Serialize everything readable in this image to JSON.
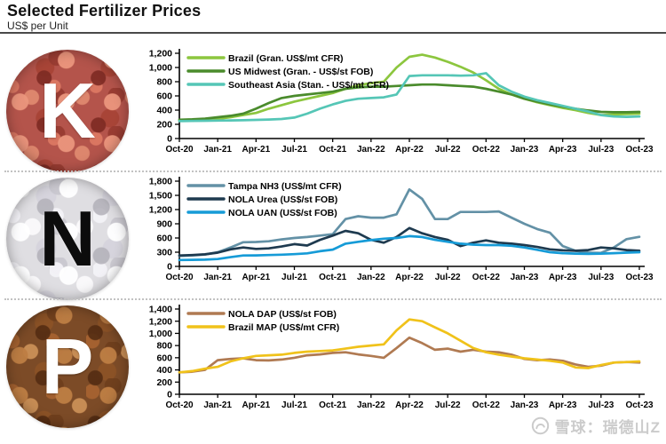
{
  "header": {
    "title": "Selected Fertilizer Prices",
    "subtitle": "US$ per Unit"
  },
  "panels": [
    {
      "letter": "K"
    },
    {
      "letter": "N"
    },
    {
      "letter": "P"
    }
  ],
  "watermark": {
    "text": "雪球：瑞德山Z"
  },
  "colors": {
    "axis": "#000000",
    "separator": "#c2c2c2",
    "watermark": "#cbcbcb"
  },
  "chart_data": [
    {
      "type": "line",
      "nutrient": "K",
      "title": "",
      "xlabel": "",
      "ylabel": "US$ per Unit",
      "ylim": [
        0,
        1200
      ],
      "ytick_step": 200,
      "grid": false,
      "legend_position": "top-left",
      "n_points": 37,
      "x_tick_labels": [
        "Oct-20",
        "Jan-21",
        "Apr-21",
        "Jul-21",
        "Oct-21",
        "Jan-22",
        "Apr-22",
        "Jul-22",
        "Oct-22",
        "Jan-23",
        "Apr-23",
        "Jul-23",
        "Oct-23"
      ],
      "series": [
        {
          "name": "Brazil (Gran. US$/mt CFR)",
          "color": "#8cc63e",
          "values": [
            250,
            255,
            260,
            275,
            300,
            330,
            360,
            420,
            470,
            520,
            560,
            600,
            640,
            700,
            750,
            780,
            800,
            1000,
            1150,
            1180,
            1140,
            1080,
            1010,
            930,
            820,
            700,
            620,
            560,
            510,
            470,
            430,
            400,
            360,
            330,
            340,
            345,
            350
          ]
        },
        {
          "name": "US Midwest (Gran. - US$/st FOB)",
          "color": "#4a8b2c",
          "values": [
            265,
            270,
            280,
            300,
            320,
            350,
            420,
            500,
            570,
            600,
            620,
            640,
            660,
            700,
            720,
            730,
            730,
            740,
            750,
            760,
            760,
            750,
            740,
            730,
            700,
            660,
            620,
            560,
            520,
            480,
            450,
            420,
            395,
            375,
            370,
            370,
            375
          ]
        },
        {
          "name": "Southeast Asia (Stan. - US$/mt CFR)",
          "color": "#55c6b6",
          "values": [
            245,
            248,
            250,
            252,
            255,
            258,
            262,
            268,
            275,
            295,
            350,
            420,
            480,
            530,
            560,
            570,
            580,
            620,
            880,
            890,
            890,
            890,
            885,
            890,
            920,
            750,
            660,
            590,
            540,
            500,
            460,
            420,
            380,
            330,
            310,
            305,
            310
          ]
        }
      ]
    },
    {
      "type": "line",
      "nutrient": "N",
      "title": "",
      "xlabel": "",
      "ylabel": "US$ per Unit",
      "ylim": [
        0,
        1800
      ],
      "ytick_step": 300,
      "grid": false,
      "legend_position": "top-left",
      "n_points": 37,
      "x_tick_labels": [
        "Oct-20",
        "Jan-21",
        "Apr-21",
        "Jul-21",
        "Oct-21",
        "Jan-22",
        "Apr-22",
        "Jul-22",
        "Oct-22",
        "Jan-23",
        "Apr-23",
        "Jul-23",
        "Oct-23"
      ],
      "series": [
        {
          "name": "Tampa NH3 (US$/mt CFR)",
          "color": "#6391a6",
          "values": [
            220,
            230,
            250,
            300,
            400,
            510,
            515,
            530,
            570,
            600,
            620,
            650,
            680,
            1000,
            1060,
            1030,
            1030,
            1100,
            1625,
            1425,
            1000,
            1000,
            1150,
            1150,
            1150,
            1160,
            1030,
            900,
            790,
            710,
            430,
            330,
            290,
            285,
            400,
            575,
            625
          ]
        },
        {
          "name": "NOLA Urea (US$/st FOB)",
          "color": "#1e3a4f",
          "values": [
            230,
            240,
            255,
            290,
            360,
            400,
            370,
            380,
            420,
            470,
            440,
            560,
            650,
            750,
            700,
            560,
            500,
            620,
            810,
            700,
            620,
            560,
            430,
            500,
            550,
            500,
            480,
            450,
            410,
            360,
            340,
            330,
            345,
            400,
            380,
            345,
            330
          ]
        },
        {
          "name": "NOLA UAN (US$/st FOB)",
          "color": "#169bd7",
          "values": [
            135,
            138,
            142,
            155,
            195,
            230,
            232,
            240,
            248,
            258,
            275,
            320,
            355,
            480,
            520,
            555,
            585,
            600,
            640,
            620,
            560,
            520,
            480,
            460,
            450,
            450,
            435,
            400,
            350,
            300,
            280,
            270,
            265,
            270,
            280,
            290,
            300
          ]
        }
      ]
    },
    {
      "type": "line",
      "nutrient": "P",
      "title": "",
      "xlabel": "",
      "ylabel": "US$ per Unit",
      "ylim": [
        0,
        1400
      ],
      "ytick_step": 200,
      "grid": false,
      "legend_position": "top-left",
      "n_points": 37,
      "x_tick_labels": [
        "Oct-20",
        "Jan-21",
        "Apr-21",
        "Jul-21",
        "Oct-21",
        "Jan-22",
        "Apr-22",
        "Jul-22",
        "Oct-22",
        "Jan-23",
        "Apr-23",
        "Jul-23",
        "Oct-23"
      ],
      "series": [
        {
          "name": "NOLA DAP (US$/st FOB)",
          "color": "#b07a52",
          "values": [
            360,
            370,
            400,
            560,
            580,
            590,
            560,
            555,
            570,
            600,
            640,
            655,
            680,
            690,
            655,
            630,
            600,
            760,
            930,
            840,
            730,
            750,
            700,
            730,
            700,
            690,
            650,
            580,
            560,
            570,
            550,
            490,
            450,
            470,
            520,
            530,
            520
          ]
        },
        {
          "name": "Brazil MAP (US$/mt CFR)",
          "color": "#f0c21a",
          "values": [
            360,
            380,
            420,
            450,
            540,
            590,
            630,
            640,
            650,
            680,
            700,
            710,
            720,
            750,
            780,
            800,
            820,
            1050,
            1230,
            1200,
            1100,
            1000,
            880,
            760,
            690,
            650,
            620,
            590,
            570,
            550,
            520,
            440,
            430,
            480,
            520,
            530,
            540
          ]
        }
      ]
    }
  ]
}
